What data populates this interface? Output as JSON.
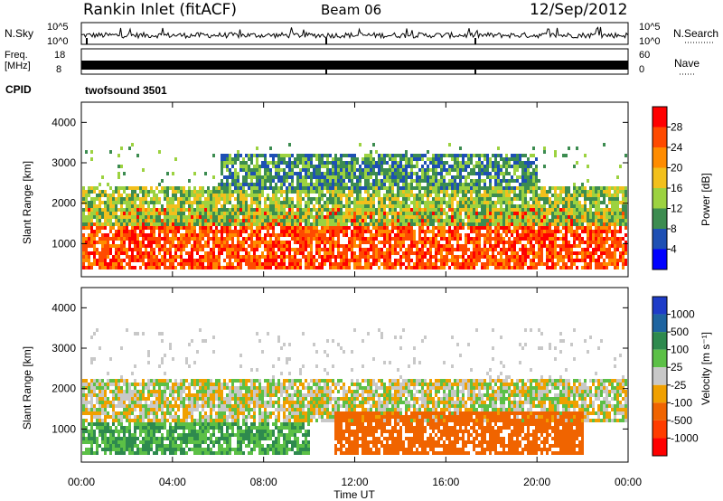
{
  "header": {
    "station": "Rankin Inlet (fitACF)",
    "beam": "Beam 06",
    "date": "12/Sep/2012"
  },
  "noise_panel": {
    "left_label": "N.Sky",
    "right_label": "N.Search",
    "left_ticks": [
      "10^5",
      "10^0"
    ],
    "right_ticks": [
      "10^5",
      "10^0"
    ]
  },
  "freq_panel": {
    "left_label_line1": "Freq.",
    "left_label_line2": "[MHz]",
    "right_label": "Nave",
    "left_ticks": [
      "18",
      "8"
    ],
    "right_ticks": [
      "60",
      "0"
    ]
  },
  "cpid": {
    "label": "CPID",
    "value": "twofsound 3501"
  },
  "chart_data": [
    {
      "type": "heatmap",
      "title": "Power",
      "ylabel": "Slant Range [km]",
      "xlabel": "",
      "x_ticks": [
        "00:00",
        "04:00",
        "08:00",
        "12:00",
        "16:00",
        "20:00",
        "00:00"
      ],
      "xlim_hours": [
        0,
        24
      ],
      "ylim": [
        180,
        4500
      ],
      "y_ticks": [
        1000,
        2000,
        3000,
        4000
      ],
      "colorbar": {
        "label": "Power [dB]",
        "ticks": [
          "28",
          "24",
          "20",
          "16",
          "12",
          "8",
          "4"
        ],
        "colors": [
          "#ff0000",
          "#ff4a00",
          "#ff8c00",
          "#f2c01c",
          "#9cd240",
          "#3c8c50",
          "#1e50b4",
          "#0000ff"
        ]
      },
      "bands": [
        {
          "range_km": [
            400,
            1900
          ],
          "level": 24,
          "hours": [
            0,
            24
          ]
        },
        {
          "range_km": [
            1500,
            2500
          ],
          "level": 12,
          "hours": [
            0,
            24
          ]
        },
        {
          "range_km": [
            2400,
            3300
          ],
          "level": 8,
          "hours": [
            6,
            20
          ]
        }
      ]
    },
    {
      "type": "heatmap",
      "title": "Velocity",
      "ylabel": "Slant Range [km]",
      "xlabel": "Time UT",
      "x_ticks": [
        "00:00",
        "04:00",
        "08:00",
        "12:00",
        "16:00",
        "20:00",
        "00:00"
      ],
      "xlim_hours": [
        0,
        24
      ],
      "ylim": [
        180,
        4500
      ],
      "y_ticks": [
        1000,
        2000,
        3000,
        4000
      ],
      "colorbar": {
        "label": "Velocity [m s⁻¹]",
        "ticks": [
          "1000",
          "500",
          "100",
          "25",
          "-25",
          "-100",
          "-500",
          "-1000"
        ],
        "colors": [
          "#1e3cc8",
          "#1e64a0",
          "#2e8a4e",
          "#5cc046",
          "#c8c8c8",
          "#f0a000",
          "#f06400",
          "#ff3c00",
          "#ff0000"
        ]
      },
      "bands": [
        {
          "range_km": [
            400,
            1200
          ],
          "level": 100,
          "hours": [
            0,
            10
          ]
        },
        {
          "range_km": [
            1200,
            2300
          ],
          "level": 0,
          "hours": [
            0,
            24
          ]
        },
        {
          "range_km": [
            400,
            1500
          ],
          "level": -250,
          "hours": [
            11,
            22
          ]
        }
      ]
    }
  ]
}
